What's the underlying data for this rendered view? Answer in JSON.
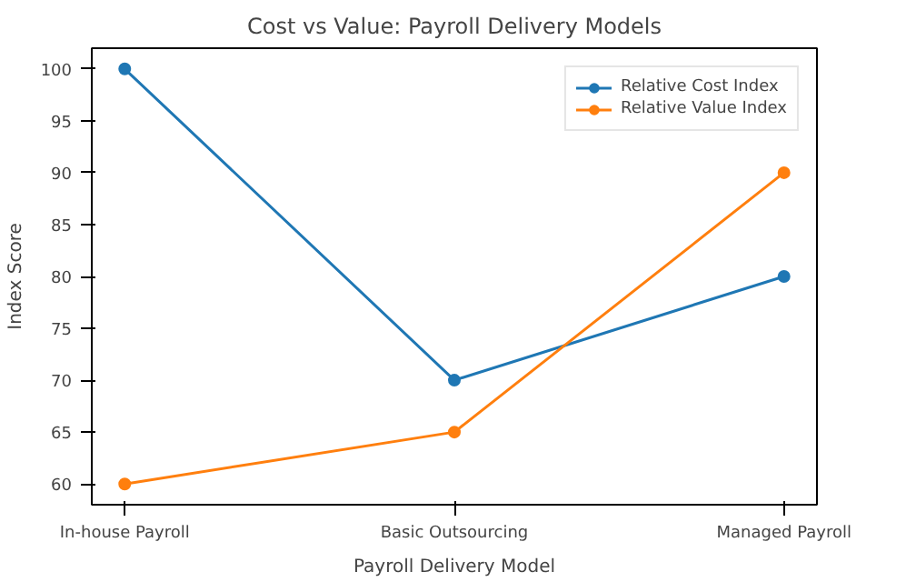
{
  "chart_data": {
    "type": "line",
    "title": "Cost vs Value: Payroll Delivery Models",
    "xlabel": "Payroll Delivery Model",
    "ylabel": "Index Score",
    "categories": [
      "In-house Payroll",
      "Basic Outsourcing",
      "Managed Payroll"
    ],
    "series": [
      {
        "name": "Relative Cost Index",
        "color": "#1f77b4",
        "values": [
          100,
          70,
          80
        ]
      },
      {
        "name": "Relative Value Index",
        "color": "#ff7f0e",
        "values": [
          60,
          65,
          90
        ]
      }
    ],
    "ylim": [
      58,
      102
    ],
    "yticks": [
      60,
      65,
      70,
      75,
      80,
      85,
      90,
      95,
      100
    ],
    "grid": false,
    "legend": "top right",
    "marker": "circle",
    "line_style": "solid"
  }
}
